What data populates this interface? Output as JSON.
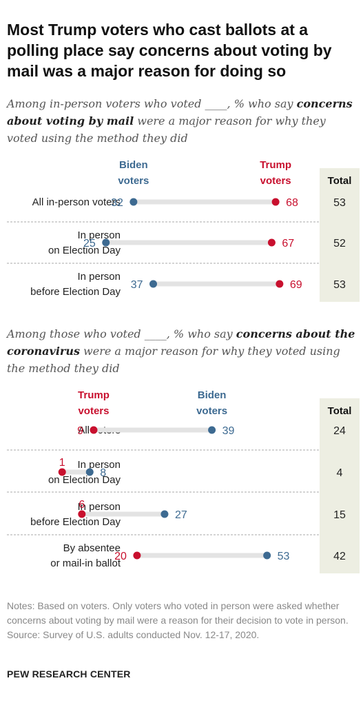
{
  "title": "Most Trump voters who cast ballots at a polling place say concerns about voting by mail was a major reason for doing so",
  "sections": [
    {
      "subtitle_parts": [
        {
          "text": "Among in-person voters who voted ____, % who say ",
          "bold": false
        },
        {
          "text": "concerns about voting by mail",
          "bold": true
        },
        {
          "text": " were a major reason for why they voted using the method they did",
          "bold": false
        }
      ]
    },
    {
      "subtitle_parts": [
        {
          "text": "Among those who voted ____, % who say ",
          "bold": false
        },
        {
          "text": "concerns about the coronavirus",
          "bold": true
        },
        {
          "text": " were a major reason for why they voted using the method they did",
          "bold": false
        }
      ]
    }
  ],
  "chart_data": [
    {
      "type": "dot",
      "series": [
        {
          "name": "Biden voters",
          "name_lines": [
            "Biden",
            "voters"
          ],
          "color": "#3d6a91",
          "values": [
            32,
            25,
            37
          ]
        },
        {
          "name": "Trump voters",
          "name_lines": [
            "Trump",
            "voters"
          ],
          "color": "#c8102e",
          "values": [
            68,
            67,
            69
          ]
        }
      ],
      "categories": [
        {
          "lines": [
            "All in-person voters"
          ]
        },
        {
          "lines": [
            "In person",
            "on Election Day"
          ]
        },
        {
          "lines": [
            "In person",
            "before Election Day"
          ]
        }
      ],
      "total_label": "Total",
      "totals": [
        53,
        52,
        53
      ],
      "xlim": [
        0,
        100
      ]
    },
    {
      "type": "dot",
      "series": [
        {
          "name": "Trump voters",
          "name_lines": [
            "Trump",
            "voters"
          ],
          "color": "#c8102e",
          "values": [
            9,
            1,
            6,
            20
          ]
        },
        {
          "name": "Biden voters",
          "name_lines": [
            "Biden",
            "voters"
          ],
          "color": "#3d6a91",
          "values": [
            39,
            8,
            27,
            53
          ]
        }
      ],
      "categories": [
        {
          "lines": [
            "All voters"
          ]
        },
        {
          "lines": [
            "In person",
            "on Election Day"
          ]
        },
        {
          "lines": [
            "In person",
            "before Election Day"
          ]
        },
        {
          "lines": [
            "By absentee",
            "or mail-in ballot"
          ]
        }
      ],
      "total_label": "Total",
      "totals": [
        24,
        4,
        15,
        42
      ],
      "xlim": [
        0,
        100
      ]
    }
  ],
  "notes": [
    "Notes: Based on voters. Only voters who voted in person were asked whether concerns about voting by mail were a reason for their decision to vote in person.",
    "Source: Survey of U.S. adults conducted Nov. 12-17, 2020."
  ],
  "brand": "PEW RESEARCH CENTER",
  "colors": {
    "biden": "#3d6a91",
    "trump": "#c8102e",
    "track": "#e3e3e3",
    "total_bg": "#edeee2",
    "divider": "#a9a9a9"
  }
}
